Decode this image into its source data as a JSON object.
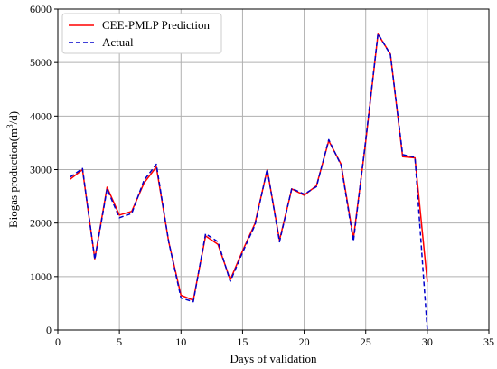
{
  "chart_data": {
    "type": "line",
    "xlabel": "Days of validation",
    "ylabel_prefix": "Biogas production(m",
    "ylabel_sup": "3",
    "ylabel_suffix": "/d)",
    "xlim": [
      0,
      35
    ],
    "ylim": [
      0,
      6000
    ],
    "xticks": [
      0,
      5,
      10,
      15,
      20,
      25,
      30,
      35
    ],
    "yticks": [
      0,
      1000,
      2000,
      3000,
      4000,
      5000,
      6000
    ],
    "grid": true,
    "legend_position": "top-left",
    "series": [
      {
        "name": "CEE-PMLP Prediction",
        "color": "#ff0000",
        "dash": "solid",
        "x": [
          1,
          2,
          3,
          4,
          5,
          6,
          7,
          8,
          9,
          10,
          11,
          12,
          13,
          14,
          15,
          16,
          17,
          18,
          19,
          20,
          21,
          22,
          23,
          24,
          25,
          26,
          27,
          28,
          29,
          30
        ],
        "values": [
          2820,
          3000,
          1330,
          2670,
          2150,
          2220,
          2750,
          3050,
          1650,
          650,
          560,
          1760,
          1600,
          940,
          1480,
          1990,
          3000,
          1680,
          2640,
          2520,
          2700,
          3540,
          3100,
          1710,
          3520,
          5530,
          5160,
          3240,
          3220,
          900
        ]
      },
      {
        "name": "Actual",
        "color": "#0000cc",
        "dash": "dashed",
        "x": [
          1,
          2,
          3,
          4,
          5,
          6,
          7,
          8,
          9,
          10,
          11,
          12,
          13,
          14,
          15,
          16,
          17,
          18,
          19,
          20,
          21,
          22,
          23,
          24,
          25,
          26,
          27,
          28,
          29,
          30
        ],
        "values": [
          2860,
          3020,
          1320,
          2640,
          2100,
          2180,
          2800,
          3100,
          1650,
          600,
          530,
          1800,
          1650,
          910,
          1450,
          1960,
          3010,
          1650,
          2650,
          2540,
          2680,
          3560,
          3080,
          1660,
          3550,
          5540,
          5150,
          3280,
          3230,
          0
        ]
      }
    ]
  }
}
